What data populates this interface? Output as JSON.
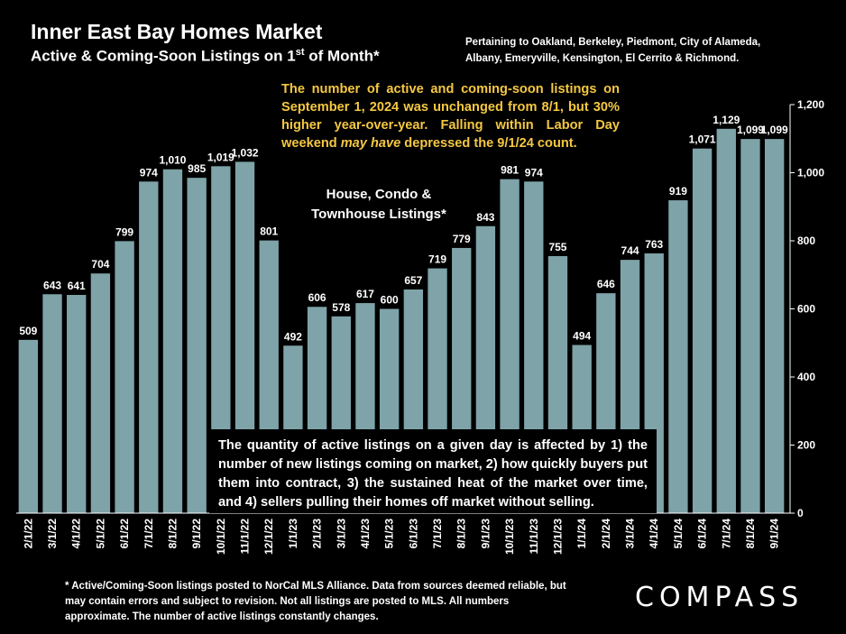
{
  "header": {
    "title": "Inner East Bay Homes Market",
    "subtitle_pre": "Active & Coming-Soon Listings on 1",
    "subtitle_sup": "st",
    "subtitle_post": " of Month*",
    "region": "Pertaining to Oakland, Berkeley, Piedmont, City of Alameda, Albany, Emeryville, Kensington, El Cerrito & Richmond."
  },
  "callout": {
    "part1": "The number of active and coming-soon listings on September 1, 2024 was unchanged from 8/1, but 30% higher year-over-year. Falling within Labor Day weekend ",
    "emphasis": "may have",
    "part2": " depressed the 9/1/24 count."
  },
  "series_label": "House, Condo & Townhouse Listings*",
  "note": "The quantity of active listings on a given day is affected by 1) the number of new listings coming on market, 2) how quickly buyers put them into contract, 3) the sustained heat of the market over time, and 4) sellers pulling their homes off market without selling.",
  "footnote": "* Active/Coming-Soon listings posted to NorCal MLS Alliance.  Data from sources deemed reliable, but may contain errors and subject to revision.  Not all listings are posted to MLS. All numbers approximate. The number of active listings constantly changes.",
  "logo": "COMPASS",
  "colors": {
    "bar": "#7ea3a8",
    "callout": "#f5c842",
    "background": "#000000"
  },
  "chart_data": {
    "type": "bar",
    "categories": [
      "2/1/22",
      "3/1/22",
      "4/1/22",
      "5/1/22",
      "6/1/22",
      "7/1/22",
      "8/1/22",
      "9/1/22",
      "10/1/22",
      "11/1/22",
      "12/1/22",
      "1/1/23",
      "2/1/23",
      "3/1/23",
      "4/1/23",
      "5/1/23",
      "6/1/23",
      "7/1/23",
      "8/1/23",
      "9/1/23",
      "10/1/23",
      "11/1/23",
      "12/1/23",
      "1/1/24",
      "2/1/24",
      "3/1/24",
      "4/1/24",
      "5/1/24",
      "6/1/24",
      "7/1/24",
      "8/1/24",
      "9/1/24"
    ],
    "values": [
      509,
      643,
      641,
      704,
      799,
      974,
      1010,
      985,
      1019,
      1032,
      801,
      492,
      606,
      578,
      617,
      600,
      657,
      719,
      779,
      843,
      981,
      974,
      755,
      494,
      646,
      744,
      763,
      919,
      1071,
      1129,
      1099,
      1099
    ],
    "value_labels": [
      "509",
      "643",
      "641",
      "704",
      "799",
      "974",
      "1,010",
      "985",
      "1,019",
      "1,032",
      "801",
      "492",
      "606",
      "578",
      "617",
      "600",
      "657",
      "719",
      "779",
      "843",
      "981",
      "974",
      "755",
      "494",
      "646",
      "744",
      "763",
      "919",
      "1,071",
      "1,129",
      "1,099",
      "1,099"
    ],
    "ylim": [
      0,
      1200
    ],
    "yticks": [
      "0",
      "200",
      "400",
      "600",
      "800",
      "1,000",
      "1,200"
    ],
    "y_axis_side": "right",
    "grid": false
  }
}
